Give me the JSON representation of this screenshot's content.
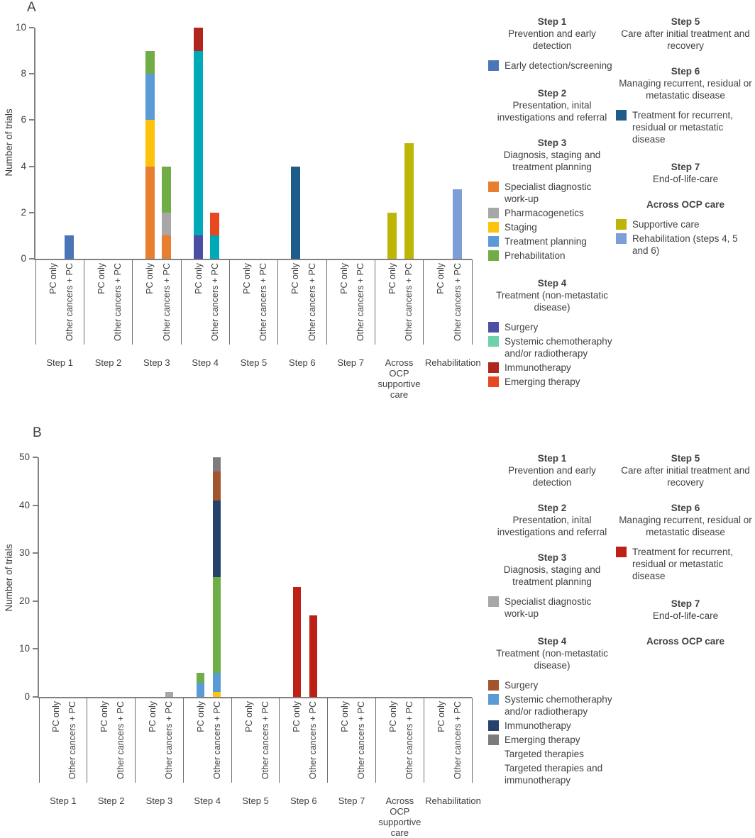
{
  "figure": {
    "panel_a_letter": "A",
    "panel_b_letter": "B",
    "ylabel": "Number of trials"
  },
  "axis": {
    "bar_labels": [
      "PC only",
      "Other cancers + PC"
    ],
    "group_labels": [
      "Step 1",
      "Step 2",
      "Step 3",
      "Step 4",
      "Step 5",
      "Step 6",
      "Step 7",
      "Across OCP supportive care",
      "Rehabilitation"
    ]
  },
  "colors": {
    "early_detection_blue": "#4a76b8",
    "specialist_orange": "#e87e2f",
    "pharmacogenetics_gray": "#a7a7a7",
    "staging_yellow": "#fdc30c",
    "treatment_planning_blue": "#5b9bd5",
    "prehabilitation_green": "#71ad47",
    "surgery_indigo": "#4a4fa5",
    "systemic_teal_bar": "#00a9b8",
    "systemic_mint_legend": "#6fd1ab",
    "immunotherapy_dark_red": "#b0251c",
    "emerging_orange_red": "#e8481f",
    "recurrent_dark_blue": "#1e5d8a",
    "supportive_olive": "#bdb508",
    "rehabilitation_periwinkle": "#7e9ed7",
    "surgery_brown": "#a2542f",
    "systemic_light_blue": "#5b9bd5",
    "immunotherapy_navy": "#24426b",
    "emerging_dark_gray": "#7c7c7c",
    "targeted_green": "#6fad47",
    "targeted_immuno_yellow": "#fdc30c",
    "recurrent_red": "#bd2015"
  },
  "chart_data": [
    {
      "type": "bar",
      "panel": "A",
      "ylabel": "Number of trials",
      "ylim": [
        0,
        10
      ],
      "yticks": [
        0,
        2,
        4,
        6,
        8,
        10
      ],
      "bar_labels": [
        "PC only",
        "Other cancers + PC"
      ],
      "categories": [
        "Step 1",
        "Step 2",
        "Step 3",
        "Step 4",
        "Step 5",
        "Step 6",
        "Step 7",
        "Across OCP supportive care",
        "Rehabilitation"
      ],
      "groups": [
        {
          "category": "Step 1",
          "bars": [
            {
              "label": "PC only",
              "segments": []
            },
            {
              "label": "Other cancers + PC",
              "segments": [
                {
                  "name": "Early detection/screening",
                  "color": "#4a76b8",
                  "value": 1
                }
              ]
            }
          ]
        },
        {
          "category": "Step 2",
          "bars": [
            {
              "label": "PC only",
              "segments": []
            },
            {
              "label": "Other cancers + PC",
              "segments": []
            }
          ]
        },
        {
          "category": "Step 3",
          "bars": [
            {
              "label": "PC only",
              "segments": [
                {
                  "name": "Specialist diagnostic work-up",
                  "color": "#e87e2f",
                  "value": 4
                },
                {
                  "name": "Staging",
                  "color": "#fdc30c",
                  "value": 2
                },
                {
                  "name": "Treatment planning",
                  "color": "#5b9bd5",
                  "value": 2
                },
                {
                  "name": "Prehabilitation",
                  "color": "#71ad47",
                  "value": 1
                }
              ]
            },
            {
              "label": "Other cancers + PC",
              "segments": [
                {
                  "name": "Specialist diagnostic work-up",
                  "color": "#e87e2f",
                  "value": 1
                },
                {
                  "name": "Pharmacogenetics",
                  "color": "#a7a7a7",
                  "value": 1
                },
                {
                  "name": "Prehabilitation",
                  "color": "#71ad47",
                  "value": 2
                }
              ]
            }
          ]
        },
        {
          "category": "Step 4",
          "bars": [
            {
              "label": "PC only",
              "segments": [
                {
                  "name": "Surgery",
                  "color": "#4a4fa5",
                  "value": 1
                },
                {
                  "name": "Systemic chemotheraphy and/or radiotherapy",
                  "color": "#00a9b8",
                  "value": 8
                },
                {
                  "name": "Immunotherapy",
                  "color": "#b0251c",
                  "value": 1
                }
              ]
            },
            {
              "label": "Other cancers + PC",
              "segments": [
                {
                  "name": "Systemic chemotheraphy and/or radiotherapy",
                  "color": "#00a9b8",
                  "value": 1
                },
                {
                  "name": "Emerging therapy",
                  "color": "#e8481f",
                  "value": 1
                }
              ]
            }
          ]
        },
        {
          "category": "Step 5",
          "bars": [
            {
              "label": "PC only",
              "segments": []
            },
            {
              "label": "Other cancers + PC",
              "segments": []
            }
          ]
        },
        {
          "category": "Step 6",
          "bars": [
            {
              "label": "PC only",
              "segments": [
                {
                  "name": "Treatment for recurrent, residual or metastatic disease",
                  "color": "#1e5d8a",
                  "value": 4
                }
              ]
            },
            {
              "label": "Other cancers + PC",
              "segments": []
            }
          ]
        },
        {
          "category": "Step 7",
          "bars": [
            {
              "label": "PC only",
              "segments": []
            },
            {
              "label": "Other cancers + PC",
              "segments": []
            }
          ]
        },
        {
          "category": "Across OCP supportive care",
          "bars": [
            {
              "label": "PC only",
              "segments": [
                {
                  "name": "Supportive care",
                  "color": "#bdb508",
                  "value": 2
                }
              ]
            },
            {
              "label": "Other cancers + PC",
              "segments": [
                {
                  "name": "Supportive care",
                  "color": "#bdb508",
                  "value": 5
                }
              ]
            }
          ]
        },
        {
          "category": "Rehabilitation",
          "bars": [
            {
              "label": "PC only",
              "segments": []
            },
            {
              "label": "Other cancers + PC",
              "segments": [
                {
                  "name": "Rehabilitation (steps 4, 5 and 6)",
                  "color": "#7e9ed7",
                  "value": 3
                }
              ]
            }
          ]
        }
      ]
    },
    {
      "type": "bar",
      "panel": "B",
      "ylabel": "Number of trials",
      "ylim": [
        0,
        50
      ],
      "yticks": [
        0,
        10,
        20,
        30,
        40,
        50
      ],
      "bar_labels": [
        "PC only",
        "Other cancers + PC"
      ],
      "categories": [
        "Step 1",
        "Step 2",
        "Step 3",
        "Step 4",
        "Step 5",
        "Step 6",
        "Step 7",
        "Across OCP supportive care",
        "Rehabilitation"
      ],
      "groups": [
        {
          "category": "Step 1",
          "bars": [
            {
              "label": "PC only",
              "segments": []
            },
            {
              "label": "Other cancers + PC",
              "segments": []
            }
          ]
        },
        {
          "category": "Step 2",
          "bars": [
            {
              "label": "PC only",
              "segments": []
            },
            {
              "label": "Other cancers + PC",
              "segments": []
            }
          ]
        },
        {
          "category": "Step 3",
          "bars": [
            {
              "label": "PC only",
              "segments": []
            },
            {
              "label": "Other cancers + PC",
              "segments": [
                {
                  "name": "Specialist diagnostic work-up",
                  "color": "#a7a7a7",
                  "value": 1
                }
              ]
            }
          ]
        },
        {
          "category": "Step 4",
          "bars": [
            {
              "label": "PC only",
              "segments": [
                {
                  "name": "Systemic chemotheraphy and/or radiotherapy",
                  "color": "#5b9bd5",
                  "value": 3
                },
                {
                  "name": "Targeted therapies",
                  "color": "#6fad47",
                  "value": 2
                }
              ]
            },
            {
              "label": "Other cancers + PC",
              "segments": [
                {
                  "name": "Targeted therapies and immunotherapy",
                  "color": "#fdc30c",
                  "value": 1
                },
                {
                  "name": "Systemic chemotheraphy and/or radiotherapy",
                  "color": "#5b9bd5",
                  "value": 4
                },
                {
                  "name": "Targeted therapies",
                  "color": "#6fad47",
                  "value": 20
                },
                {
                  "name": "Immunotherapy",
                  "color": "#24426b",
                  "value": 16
                },
                {
                  "name": "Surgery",
                  "color": "#a2542f",
                  "value": 6
                },
                {
                  "name": "Emerging therapy",
                  "color": "#7c7c7c",
                  "value": 3
                }
              ]
            }
          ]
        },
        {
          "category": "Step 5",
          "bars": [
            {
              "label": "PC only",
              "segments": []
            },
            {
              "label": "Other cancers + PC",
              "segments": []
            }
          ]
        },
        {
          "category": "Step 6",
          "bars": [
            {
              "label": "PC only",
              "segments": [
                {
                  "name": "Treatment for recurrent, residual or metastatic disease",
                  "color": "#bd2015",
                  "value": 23
                }
              ]
            },
            {
              "label": "Other cancers + PC",
              "segments": [
                {
                  "name": "Treatment for recurrent, residual or metastatic disease",
                  "color": "#bd2015",
                  "value": 17
                }
              ]
            }
          ]
        },
        {
          "category": "Step 7",
          "bars": [
            {
              "label": "PC only",
              "segments": []
            },
            {
              "label": "Other cancers + PC",
              "segments": []
            }
          ]
        },
        {
          "category": "Across OCP supportive care",
          "bars": [
            {
              "label": "PC only",
              "segments": []
            },
            {
              "label": "Other cancers + PC",
              "segments": []
            }
          ]
        },
        {
          "category": "Rehabilitation",
          "bars": [
            {
              "label": "PC only",
              "segments": []
            },
            {
              "label": "Other cancers + PC",
              "segments": []
            }
          ]
        }
      ]
    }
  ],
  "legend_a": {
    "columns": [
      [
        {
          "heading": "Step 1",
          "subtitle": "Prevention and early detection",
          "items": [
            {
              "swatch": "#4a76b8",
              "label": "Early detection/screening"
            }
          ]
        },
        {
          "heading": "Step 2",
          "subtitle": "Presentation, inital investigations and referral",
          "items": []
        },
        {
          "heading": "Step 3",
          "subtitle": "Diagnosis, staging and treatment planning",
          "items": [
            {
              "swatch": "#e87e2f",
              "label": "Specialist diagnostic work-up"
            },
            {
              "swatch": "#a7a7a7",
              "label": "Pharmacogenetics"
            },
            {
              "swatch": "#fdc30c",
              "label": "Staging"
            },
            {
              "swatch": "#5b9bd5",
              "label": "Treatment planning"
            },
            {
              "swatch": "#71ad47",
              "label": "Prehabilitation"
            }
          ]
        },
        {
          "heading": "Step 4",
          "subtitle": "Treatment (non-metastatic disease)",
          "items": [
            {
              "swatch": "#4a4fa5",
              "label": "Surgery"
            },
            {
              "swatch": "#6fd1ab",
              "label": "Systemic chemotheraphy and/or radiotherapy"
            },
            {
              "swatch": "#b0251c",
              "label": "Immunotherapy"
            },
            {
              "swatch": "#e8481f",
              "label": "Emerging therapy"
            }
          ]
        }
      ],
      [
        {
          "heading": "Step 5",
          "subtitle": "Care after initial treatment and recovery",
          "items": []
        },
        {
          "heading": "Step 6",
          "subtitle": "Managing recurrent, residual or metastatic disease",
          "items": [
            {
              "swatch": "#1e5d8a",
              "label": "Treatment for recurrent, residual or metastatic disease"
            }
          ]
        },
        {
          "heading": "Step 7",
          "subtitle": "End-of-life-care",
          "items": []
        },
        {
          "heading": "Across OCP care",
          "subtitle": "",
          "items": [
            {
              "swatch": "#bdb508",
              "label": "Supportive care"
            },
            {
              "swatch": "#7e9ed7",
              "label": "Rehabilitation (steps 4, 5 and 6)"
            }
          ]
        }
      ]
    ]
  },
  "legend_b": {
    "columns": [
      [
        {
          "heading": "Step 1",
          "subtitle": "Prevention and early detection",
          "items": []
        },
        {
          "heading": "Step 2",
          "subtitle": "Presentation, inital investigations and referral",
          "items": []
        },
        {
          "heading": "Step 3",
          "subtitle": "Diagnosis, staging and treatment planning",
          "items": [
            {
              "swatch": "#a7a7a7",
              "label": "Specialist diagnostic work-up"
            }
          ]
        },
        {
          "heading": "Step 4",
          "subtitle": "Treatment (non-metastatic disease)",
          "items": [
            {
              "swatch": "#a2542f",
              "label": "Surgery"
            },
            {
              "swatch": "#5b9bd5",
              "label": "Systemic chemotheraphy and/or radiotherapy"
            },
            {
              "swatch": "#24426b",
              "label": "Immunotherapy"
            },
            {
              "swatch": "#7c7c7c",
              "label": "Emerging therapy"
            },
            {
              "swatch": null,
              "label": "Targeted therapies"
            },
            {
              "swatch": null,
              "label": "Targeted therapies and immunotherapy"
            }
          ]
        }
      ],
      [
        {
          "heading": "Step 5",
          "subtitle": "Care after initial treatment and recovery",
          "items": []
        },
        {
          "heading": "Step 6",
          "subtitle": "Managing recurrent, residual or metastatic disease",
          "items": [
            {
              "swatch": "#bd2015",
              "label": "Treatment for recurrent, residual or metastatic disease"
            }
          ]
        },
        {
          "heading": "Step 7",
          "subtitle": "End-of-life-care",
          "items": []
        },
        {
          "heading": "Across OCP care",
          "subtitle": "",
          "items": []
        }
      ]
    ]
  }
}
